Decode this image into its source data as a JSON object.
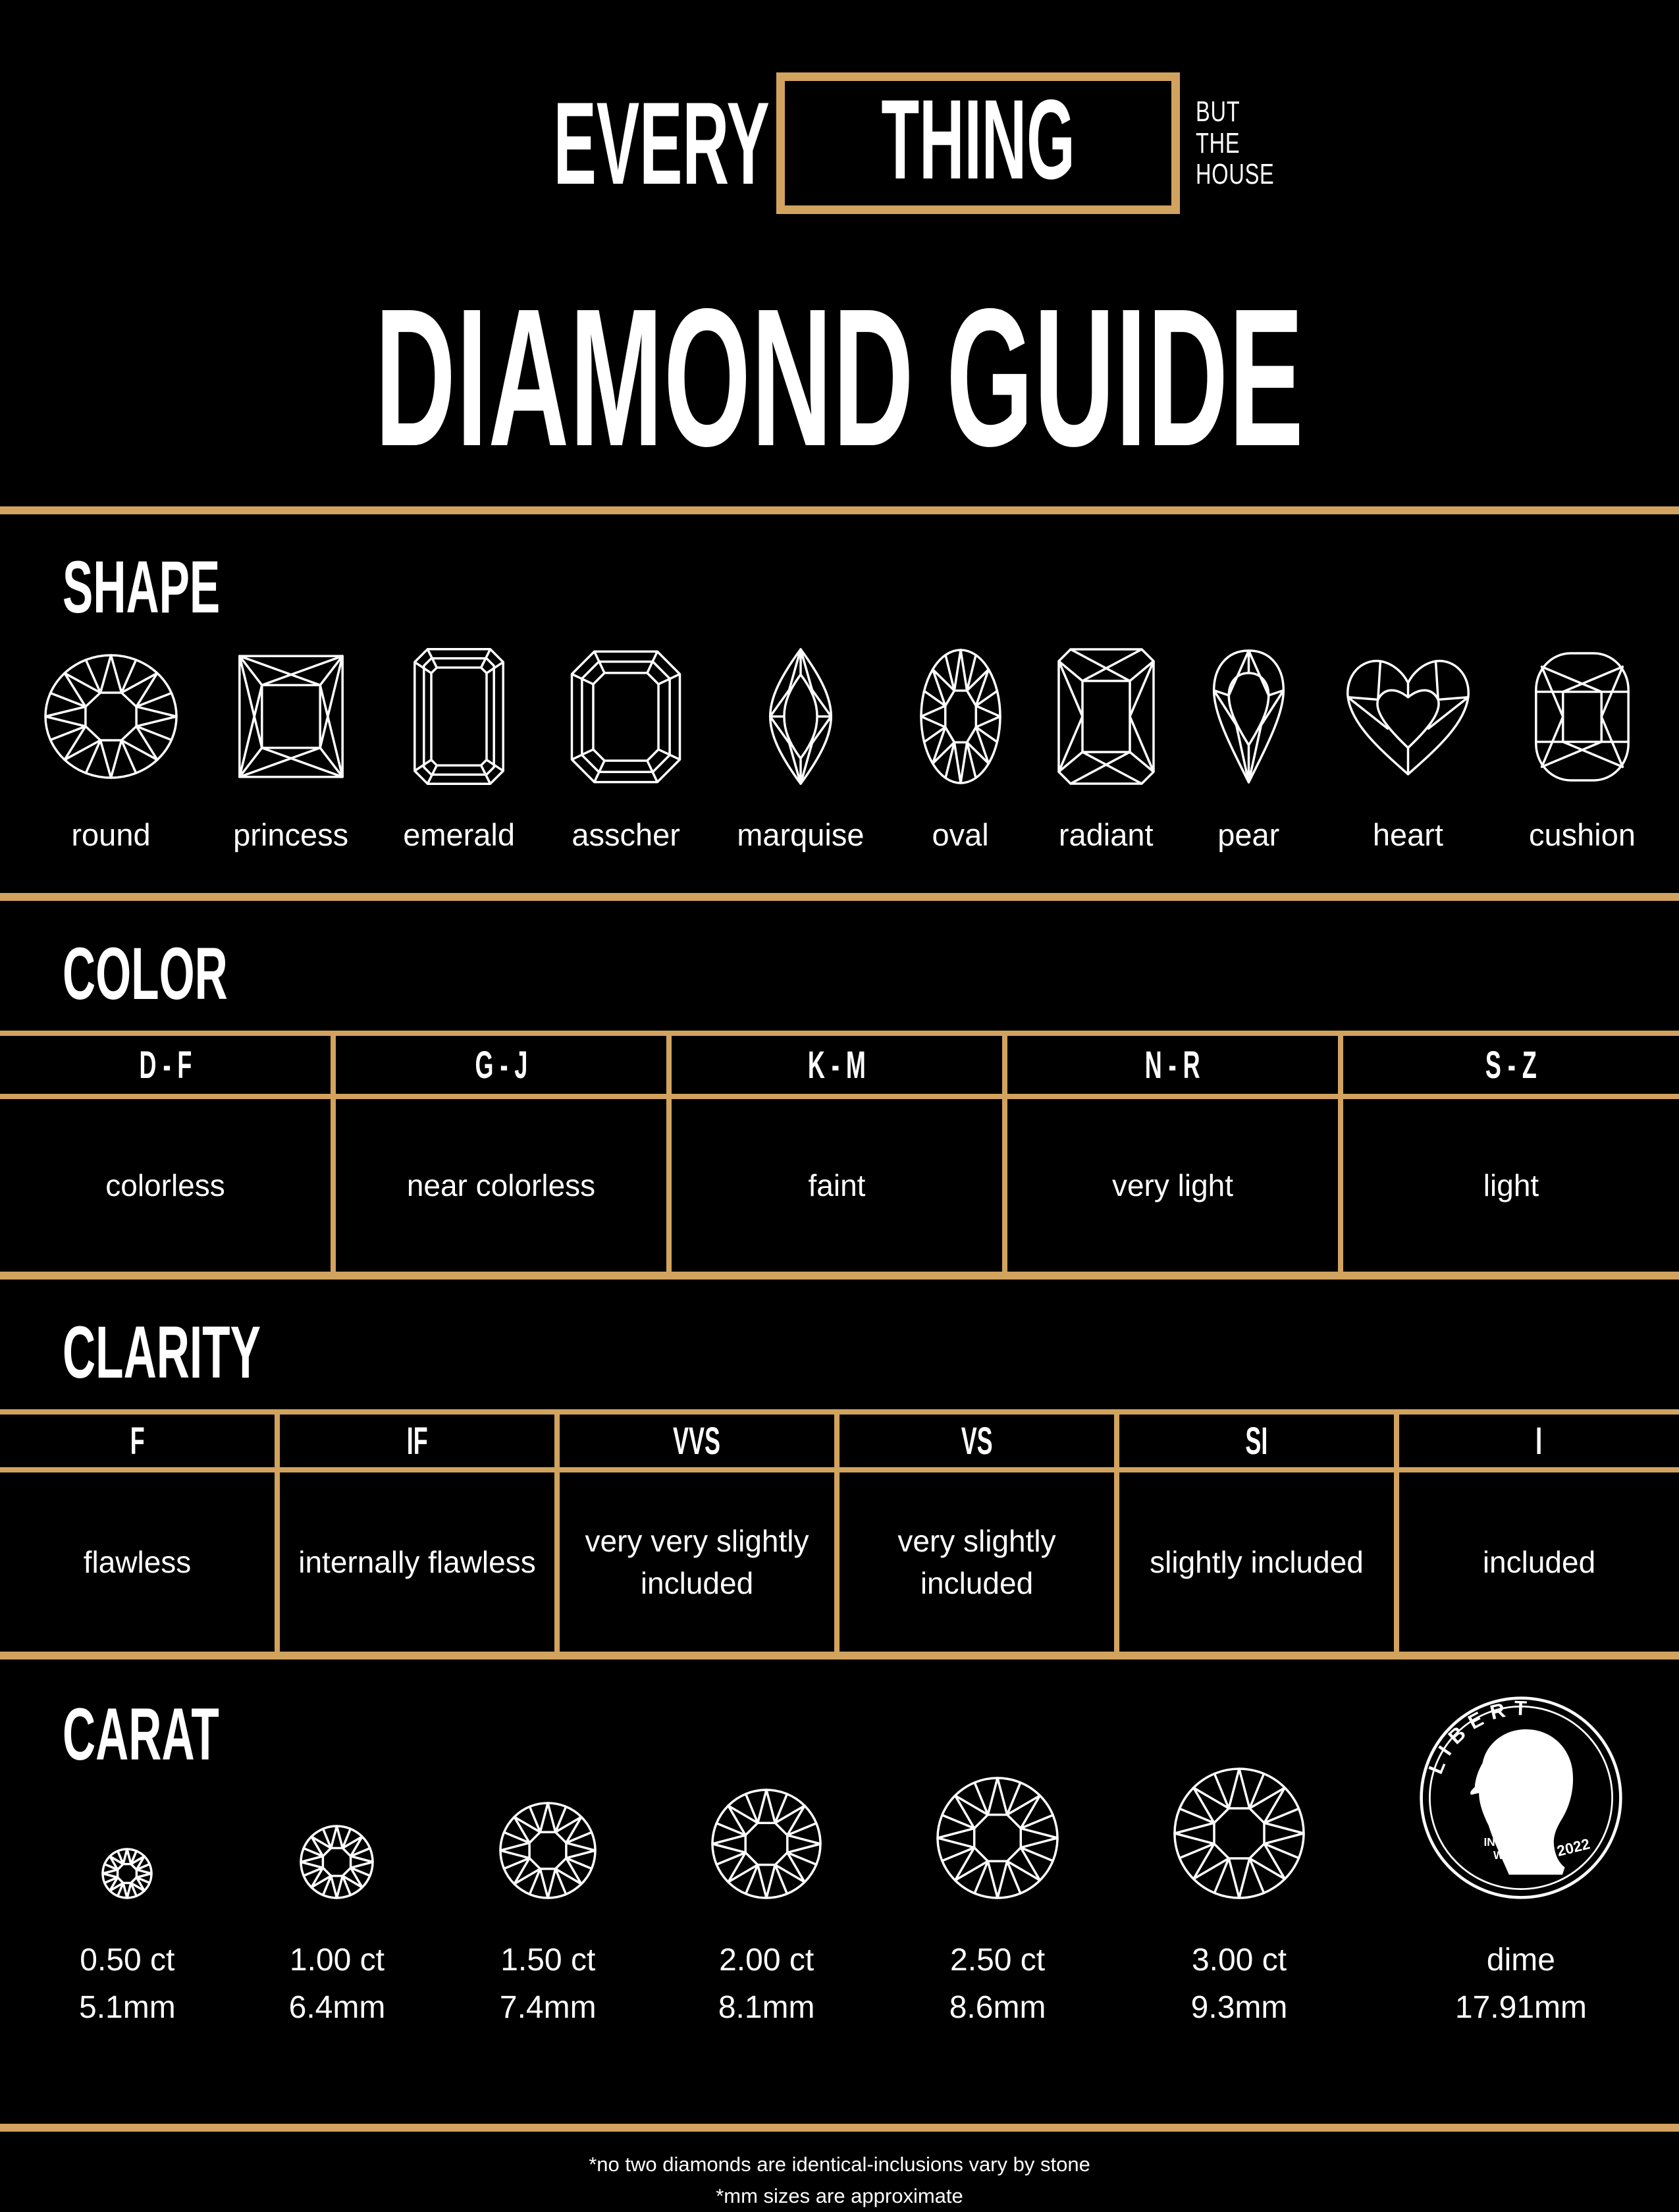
{
  "colors": {
    "background": "#000000",
    "gold": "#D2A35E",
    "text": "#FFFFFF"
  },
  "logo": {
    "word_left": "EVERY",
    "word_boxed": "THING",
    "tagline": [
      "BUT",
      "THE",
      "HOUSE"
    ]
  },
  "title": "DIAMOND GUIDE",
  "shape": {
    "heading": "SHAPE",
    "items": [
      {
        "label": "round"
      },
      {
        "label": "princess"
      },
      {
        "label": "emerald"
      },
      {
        "label": "asscher"
      },
      {
        "label": "marquise"
      },
      {
        "label": "oval"
      },
      {
        "label": "radiant"
      },
      {
        "label": "pear"
      },
      {
        "label": "heart"
      },
      {
        "label": "cushion"
      }
    ]
  },
  "color": {
    "heading": "COLOR",
    "columns": [
      {
        "grade": "D - F",
        "desc": "colorless"
      },
      {
        "grade": "G - J",
        "desc": "near colorless"
      },
      {
        "grade": "K - M",
        "desc": "faint"
      },
      {
        "grade": "N - R",
        "desc": "very light"
      },
      {
        "grade": "S - Z",
        "desc": "light"
      }
    ]
  },
  "clarity": {
    "heading": "CLARITY",
    "columns": [
      {
        "grade": "F",
        "desc": "flawless"
      },
      {
        "grade": "IF",
        "desc": "internally flawless"
      },
      {
        "grade": "VVS",
        "desc": "very very slightly included"
      },
      {
        "grade": "VS",
        "desc": "very slightly included"
      },
      {
        "grade": "SI",
        "desc": "slightly included"
      },
      {
        "grade": "I",
        "desc": "included"
      }
    ]
  },
  "carat": {
    "heading": "CARAT",
    "items": [
      {
        "ct": "0.50 ct",
        "mm": "5.1mm"
      },
      {
        "ct": "1.00 ct",
        "mm": "6.4mm"
      },
      {
        "ct": "1.50 ct",
        "mm": "7.4mm"
      },
      {
        "ct": "2.00 ct",
        "mm": "8.1mm"
      },
      {
        "ct": "2.50 ct",
        "mm": "8.6mm"
      },
      {
        "ct": "3.00 ct",
        "mm": "9.3mm"
      },
      {
        "ct": "dime",
        "mm": "17.91mm"
      }
    ],
    "coin": {
      "liberty": "LIBERTY",
      "motto_line1": "IN GOD",
      "motto_line2": "WE TRUST",
      "year": "2022"
    }
  },
  "footnotes": {
    "line1": "*no two diamonds are identical-inclusions vary by stone",
    "line2": "*mm sizes are approximate"
  }
}
